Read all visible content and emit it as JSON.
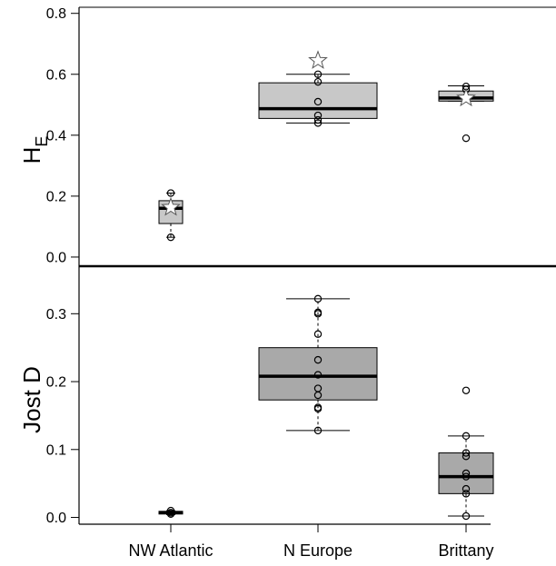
{
  "chart_data": [
    {
      "type": "box",
      "panel": "top",
      "ylabel": "H",
      "ylabel_subscript": "E",
      "ylim": [
        -0.03,
        0.82
      ],
      "yticks": [
        0.0,
        0.2,
        0.4,
        0.6,
        0.8
      ],
      "categories": [
        "NW Atlantic",
        "N Europe",
        "Brittany"
      ],
      "fill": "#c8c8c8",
      "boxes": [
        {
          "q1": 0.11,
          "median": 0.16,
          "q3": 0.185,
          "whisker_low": 0.065,
          "whisker_high": 0.21,
          "points": [
            0.065,
            0.21
          ],
          "star": 0.163
        },
        {
          "q1": 0.455,
          "median": 0.487,
          "q3": 0.572,
          "whisker_low": 0.44,
          "whisker_high": 0.6,
          "points": [
            0.44,
            0.45,
            0.465,
            0.51,
            0.575,
            0.6
          ],
          "star": 0.645
        },
        {
          "q1": 0.512,
          "median": 0.522,
          "q3": 0.545,
          "whisker_low": 0.512,
          "whisker_high": 0.562,
          "points": [
            0.39,
            0.525,
            0.55,
            0.56
          ],
          "star": 0.522
        }
      ]
    },
    {
      "type": "box",
      "panel": "bottom",
      "ylabel": "Jost D",
      "ylim": [
        -0.01,
        0.37
      ],
      "yticks": [
        0.0,
        0.1,
        0.2,
        0.3
      ],
      "categories": [
        "NW Atlantic",
        "N Europe",
        "Brittany"
      ],
      "fill": "#a9a9a9",
      "boxes": [
        {
          "q1": 0.005,
          "median": 0.007,
          "q3": 0.009,
          "whisker_low": 0.004,
          "whisker_high": 0.01,
          "points": [
            0.005,
            0.007,
            0.01
          ]
        },
        {
          "q1": 0.173,
          "median": 0.208,
          "q3": 0.25,
          "whisker_low": 0.128,
          "whisker_high": 0.322,
          "points": [
            0.128,
            0.16,
            0.162,
            0.18,
            0.19,
            0.21,
            0.232,
            0.27,
            0.3,
            0.302,
            0.322
          ]
        },
        {
          "q1": 0.035,
          "median": 0.06,
          "q3": 0.095,
          "whisker_low": 0.002,
          "whisker_high": 0.12,
          "points": [
            0.002,
            0.035,
            0.042,
            0.06,
            0.065,
            0.09,
            0.095,
            0.12,
            0.187
          ]
        }
      ]
    }
  ],
  "axis_ticks_top": [
    "0.0",
    "0.2",
    "0.4",
    "0.6",
    "0.8"
  ],
  "axis_ticks_bottom": [
    "0.0",
    "0.1",
    "0.2",
    "0.3"
  ],
  "x_labels": [
    "NW Atlantic",
    "N Europe",
    "Brittany"
  ]
}
